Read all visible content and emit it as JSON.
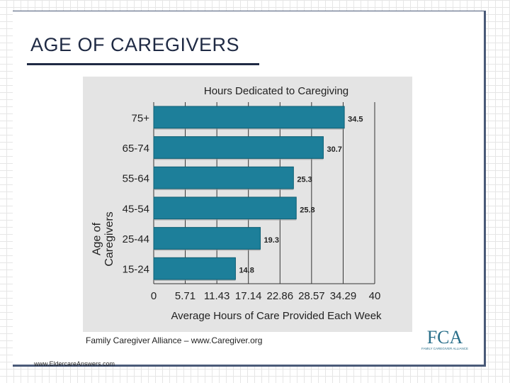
{
  "slide": {
    "title": "AGE OF CAREGIVERS",
    "source": "Family Caregiver Alliance – www.Caregiver.org",
    "footer_url": "www.EldercareAnswers.com"
  },
  "colors": {
    "bar": "#1d7f9a",
    "bar_edge": "#0f5f75",
    "panel": "#e4e4e4",
    "grid": "#333333",
    "accent": "#4a5a78"
  },
  "logo": {
    "icon": "fca-logo-icon",
    "text": "FCA",
    "subtext": "FAMILY CAREGIVER ALLIANCE"
  },
  "chart_data": {
    "type": "bar",
    "orientation": "horizontal",
    "title": "Hours Dedicated to Caregiving",
    "xlabel": "Average Hours of Care Provided Each Week",
    "ylabel": "Age of Caregivers",
    "categories": [
      "75+",
      "65-74",
      "55-64",
      "45-54",
      "25-44",
      "15-24"
    ],
    "values": [
      34.5,
      30.7,
      25.3,
      25.8,
      19.3,
      14.8
    ],
    "value_labels": [
      "34.5",
      "30.7",
      "25.3",
      "25.8",
      "19.3",
      "14.8"
    ],
    "xlim": [
      0,
      40
    ],
    "xticks": [
      0,
      5.71,
      11.43,
      17.14,
      22.86,
      28.57,
      34.29,
      40
    ],
    "xtick_labels": [
      "0",
      "5.71",
      "11.43",
      "17.14",
      "22.86",
      "28.57",
      "34.29",
      "40"
    ],
    "grid": true,
    "legend": false
  }
}
